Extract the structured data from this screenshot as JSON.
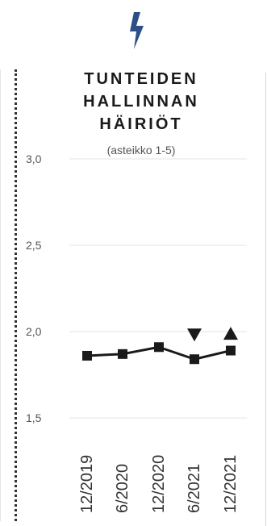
{
  "header": {
    "title_lines": [
      "TUNTEIDEN",
      "HALLINNAN",
      "HÄIRIÖT"
    ],
    "subtitle": "(asteikko 1-5)",
    "icon": "lightning-bolt-icon",
    "icon_color": "#2d4f86"
  },
  "chart_data": {
    "type": "line",
    "categories": [
      "12/2019",
      "6/2020",
      "12/2020",
      "6/2021",
      "12/2021"
    ],
    "values": [
      1.86,
      1.87,
      1.91,
      1.84,
      1.89
    ],
    "ylim": [
      1.5,
      3.0
    ],
    "yticks": [
      1.5,
      2.0,
      2.5,
      3.0
    ],
    "ytick_labels": [
      "1,5",
      "2,0",
      "2,5",
      "3,0"
    ],
    "grid": true,
    "markers": [
      {
        "category": "6/2021",
        "shape": "triangle-down",
        "value": 1.98
      },
      {
        "category": "12/2021",
        "shape": "triangle-up",
        "value": 1.99
      }
    ],
    "colors": {
      "line": "#1a1a1a",
      "grid": "#e6e6e6",
      "text": "#555555"
    }
  }
}
